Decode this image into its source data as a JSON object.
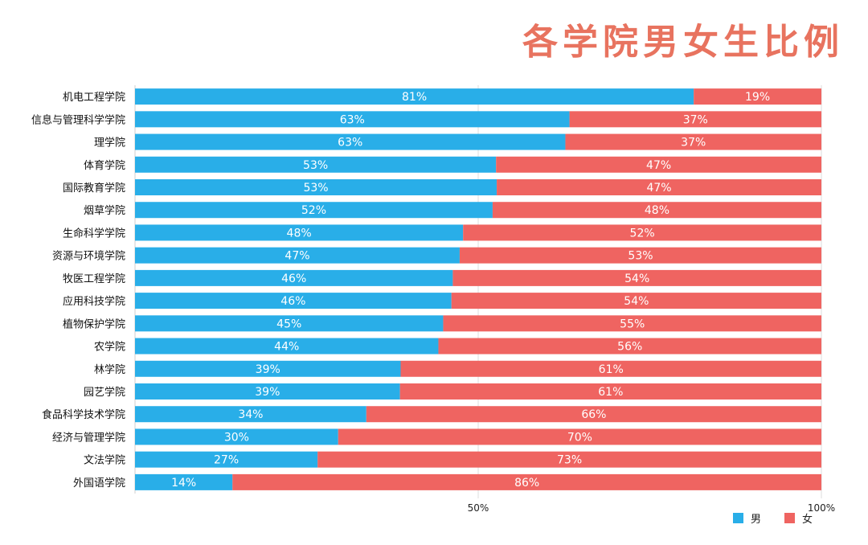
{
  "chart_data": {
    "type": "bar",
    "orientation": "horizontal",
    "stacked": true,
    "title": "各学院男女生比例",
    "categories": [
      "机电工程学院",
      "信息与管理科学学院",
      "理学院",
      "体育学院",
      "国际教育学院",
      "烟草学院",
      "生命科学学院",
      "资源与环境学院",
      "牧医工程学院",
      "应用科技学院",
      "植物保护学院",
      "农学院",
      "林学院",
      "园艺学院",
      "食品科学技术学院",
      "经济与管理学院",
      "文法学院",
      "外国语学院"
    ],
    "series": [
      {
        "name": "男",
        "color": "#29aee8",
        "values": [
          81.4,
          63.3,
          62.7,
          52.6,
          52.7,
          52.1,
          47.8,
          47.3,
          46.3,
          46.1,
          44.9,
          44.2,
          38.7,
          38.6,
          33.7,
          29.6,
          26.6,
          14.2
        ],
        "labels": [
          "81%",
          "63%",
          "63%",
          "53%",
          "53%",
          "52%",
          "48%",
          "47%",
          "46%",
          "46%",
          "45%",
          "44%",
          "39%",
          "39%",
          "34%",
          "30%",
          "27%",
          "14%"
        ]
      },
      {
        "name": "女",
        "color": "#ef6461",
        "values": [
          18.6,
          36.7,
          37.3,
          47.4,
          47.3,
          47.9,
          52.2,
          52.7,
          53.7,
          53.9,
          55.1,
          55.8,
          61.3,
          61.4,
          66.3,
          70.4,
          73.4,
          85.8
        ],
        "labels": [
          "19%",
          "37%",
          "37%",
          "47%",
          "47%",
          "48%",
          "52%",
          "53%",
          "54%",
          "54%",
          "55%",
          "56%",
          "61%",
          "61%",
          "66%",
          "70%",
          "73%",
          "86%"
        ]
      }
    ],
    "xlim": [
      0,
      100
    ],
    "x_ticks": [
      {
        "value": 50,
        "label": "50%"
      },
      {
        "value": 100,
        "label": "100%"
      }
    ],
    "grid": false,
    "legend_position": "bottom-right"
  }
}
